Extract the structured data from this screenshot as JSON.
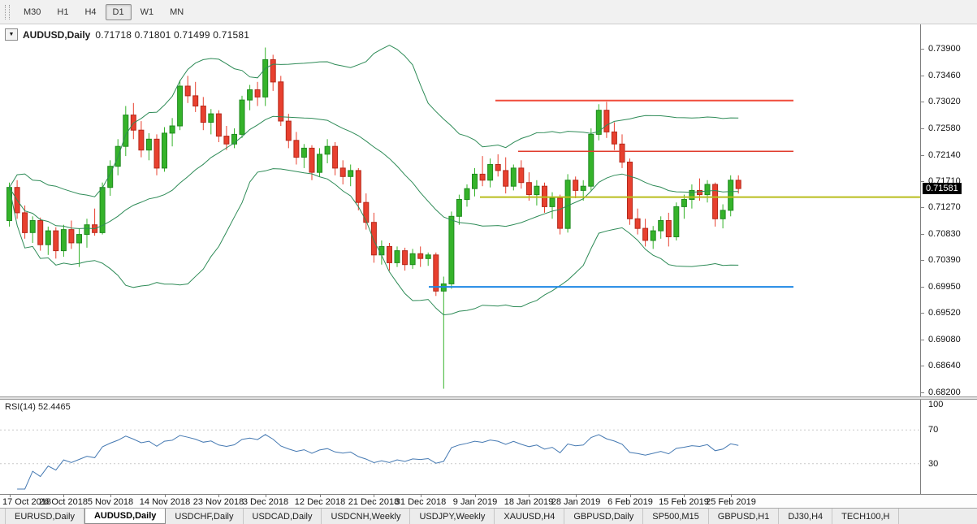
{
  "window": {
    "toolbar": {
      "timeframes": [
        {
          "label": "M30",
          "active": false
        },
        {
          "label": "H1",
          "active": false
        },
        {
          "label": "H4",
          "active": false
        },
        {
          "label": "D1",
          "active": true
        },
        {
          "label": "W1",
          "active": false
        },
        {
          "label": "MN",
          "active": false
        }
      ]
    }
  },
  "chart": {
    "header": {
      "dropdown_icon": "▼",
      "symbol": "AUDUSD,Daily",
      "ohlc": "0.71718 0.71801 0.71499 0.71581"
    },
    "price_axis": {
      "ticks": [
        "0.73900",
        "0.73460",
        "0.73020",
        "0.72580",
        "0.72140",
        "0.71710",
        "0.71270",
        "0.70830",
        "0.70390",
        "0.69950",
        "0.69520",
        "0.69080",
        "0.68640",
        "0.68200"
      ],
      "current_price": "0.71581"
    },
    "date_axis": {
      "ticks": [
        {
          "label": "17 Oct 2018",
          "index": 0
        },
        {
          "label": "26 Oct 2018",
          "index": 7
        },
        {
          "label": "5 Nov 2018",
          "index": 13
        },
        {
          "label": "14 Nov 2018",
          "index": 20
        },
        {
          "label": "23 Nov 2018",
          "index": 27
        },
        {
          "label": "3 Dec 2018",
          "index": 33
        },
        {
          "label": "12 Dec 2018",
          "index": 40
        },
        {
          "label": "21 Dec 2018",
          "index": 47
        },
        {
          "label": "31 Dec 2018",
          "index": 53
        },
        {
          "label": "9 Jan 2019",
          "index": 60
        },
        {
          "label": "18 Jan 2019",
          "index": 67
        },
        {
          "label": "28 Jan 2019",
          "index": 73
        },
        {
          "label": "6 Feb 2019",
          "index": 80
        },
        {
          "label": "15 Feb 2019",
          "index": 87
        },
        {
          "label": "25 Feb 2019",
          "index": 93
        }
      ]
    }
  },
  "chart_data": {
    "type": "candlestick",
    "symbol": "AUDUSD",
    "timeframe": "Daily",
    "price_max": 0.739,
    "price_min": 0.682,
    "colors": {
      "bull": "#35b32a",
      "bull_border": "#1f8a1f",
      "bear": "#e8402f",
      "bear_border": "#b5291b",
      "background": "#ffffff"
    },
    "indicators": {
      "bollinger": {
        "period": 20,
        "deviation": 2,
        "color": "#2e8b57"
      }
    },
    "candles": [
      [
        0.7105,
        0.7168,
        0.7095,
        0.716
      ],
      [
        0.716,
        0.7172,
        0.7108,
        0.7118
      ],
      [
        0.7118,
        0.713,
        0.7075,
        0.7085
      ],
      [
        0.7085,
        0.7112,
        0.7068,
        0.7105
      ],
      [
        0.7105,
        0.711,
        0.7055,
        0.7065
      ],
      [
        0.7065,
        0.7095,
        0.7048,
        0.7088
      ],
      [
        0.7088,
        0.7094,
        0.7042,
        0.7055
      ],
      [
        0.7055,
        0.7098,
        0.7045,
        0.709
      ],
      [
        0.709,
        0.7105,
        0.7058,
        0.7068
      ],
      [
        0.7068,
        0.7092,
        0.7028,
        0.7082
      ],
      [
        0.7082,
        0.7108,
        0.706,
        0.7098
      ],
      [
        0.7098,
        0.7125,
        0.708,
        0.7085
      ],
      [
        0.7085,
        0.7168,
        0.7082,
        0.716
      ],
      [
        0.716,
        0.7205,
        0.7146,
        0.7195
      ],
      [
        0.7195,
        0.724,
        0.718,
        0.7228
      ],
      [
        0.7228,
        0.7295,
        0.7212,
        0.728
      ],
      [
        0.728,
        0.73,
        0.724,
        0.7255
      ],
      [
        0.7255,
        0.727,
        0.721,
        0.7222
      ],
      [
        0.7222,
        0.725,
        0.7205,
        0.724
      ],
      [
        0.724,
        0.7248,
        0.718,
        0.7192
      ],
      [
        0.7192,
        0.726,
        0.7186,
        0.725
      ],
      [
        0.725,
        0.7275,
        0.7228,
        0.7262
      ],
      [
        0.7262,
        0.7338,
        0.7255,
        0.7328
      ],
      [
        0.7328,
        0.7345,
        0.73,
        0.7312
      ],
      [
        0.7312,
        0.7335,
        0.7285,
        0.7295
      ],
      [
        0.7295,
        0.731,
        0.7255,
        0.7268
      ],
      [
        0.7268,
        0.729,
        0.7248,
        0.7282
      ],
      [
        0.7282,
        0.7288,
        0.7235,
        0.7245
      ],
      [
        0.7245,
        0.7262,
        0.7222,
        0.7232
      ],
      [
        0.7232,
        0.7258,
        0.7225,
        0.7248
      ],
      [
        0.7248,
        0.7312,
        0.7242,
        0.7305
      ],
      [
        0.7305,
        0.733,
        0.7288,
        0.7322
      ],
      [
        0.7322,
        0.7335,
        0.7295,
        0.731
      ],
      [
        0.731,
        0.7392,
        0.7295,
        0.7372
      ],
      [
        0.7372,
        0.738,
        0.732,
        0.7335
      ],
      [
        0.7335,
        0.7345,
        0.7262,
        0.727
      ],
      [
        0.727,
        0.7282,
        0.7225,
        0.7238
      ],
      [
        0.7238,
        0.7252,
        0.7198,
        0.721
      ],
      [
        0.721,
        0.7232,
        0.7192,
        0.7225
      ],
      [
        0.7225,
        0.723,
        0.7172,
        0.7185
      ],
      [
        0.7185,
        0.7225,
        0.7178,
        0.7215
      ],
      [
        0.7215,
        0.724,
        0.72,
        0.7228
      ],
      [
        0.7228,
        0.7235,
        0.718,
        0.7192
      ],
      [
        0.7192,
        0.7205,
        0.7165,
        0.7178
      ],
      [
        0.7178,
        0.7198,
        0.7162,
        0.7188
      ],
      [
        0.7188,
        0.7192,
        0.7122,
        0.7135
      ],
      [
        0.7135,
        0.715,
        0.709,
        0.7102
      ],
      [
        0.7102,
        0.7118,
        0.7035,
        0.7048
      ],
      [
        0.7048,
        0.7072,
        0.7032,
        0.7062
      ],
      [
        0.7062,
        0.7068,
        0.7022,
        0.7035
      ],
      [
        0.7035,
        0.7062,
        0.7028,
        0.7055
      ],
      [
        0.7055,
        0.706,
        0.7022,
        0.7032
      ],
      [
        0.7032,
        0.7058,
        0.7025,
        0.705
      ],
      [
        0.705,
        0.7062,
        0.7028,
        0.7042
      ],
      [
        0.7042,
        0.7052,
        0.703,
        0.7048
      ],
      [
        0.7048,
        0.7052,
        0.698,
        0.6988
      ],
      [
        0.6988,
        0.7012,
        0.6826,
        0.7
      ],
      [
        0.7,
        0.712,
        0.6992,
        0.7112
      ],
      [
        0.7112,
        0.7148,
        0.7098,
        0.714
      ],
      [
        0.714,
        0.7165,
        0.7128,
        0.7158
      ],
      [
        0.7158,
        0.7192,
        0.7145,
        0.7182
      ],
      [
        0.7182,
        0.7212,
        0.7162,
        0.7172
      ],
      [
        0.7172,
        0.7208,
        0.716,
        0.7198
      ],
      [
        0.7198,
        0.7215,
        0.7178,
        0.7188
      ],
      [
        0.7188,
        0.721,
        0.715,
        0.7162
      ],
      [
        0.7162,
        0.7198,
        0.7155,
        0.7192
      ],
      [
        0.7192,
        0.7205,
        0.7158,
        0.7168
      ],
      [
        0.7168,
        0.7185,
        0.7138,
        0.7148
      ],
      [
        0.7148,
        0.7172,
        0.713,
        0.7162
      ],
      [
        0.7162,
        0.7168,
        0.7118,
        0.7128
      ],
      [
        0.7128,
        0.7152,
        0.7108,
        0.7142
      ],
      [
        0.7142,
        0.7148,
        0.7082,
        0.7092
      ],
      [
        0.7092,
        0.7182,
        0.7085,
        0.7172
      ],
      [
        0.7172,
        0.7178,
        0.7142,
        0.7155
      ],
      [
        0.7155,
        0.7172,
        0.7138,
        0.7162
      ],
      [
        0.7162,
        0.7258,
        0.7155,
        0.7248
      ],
      [
        0.7248,
        0.7298,
        0.7238,
        0.7288
      ],
      [
        0.7288,
        0.7302,
        0.7242,
        0.7252
      ],
      [
        0.7252,
        0.7268,
        0.7222,
        0.7232
      ],
      [
        0.7232,
        0.7248,
        0.7192,
        0.7202
      ],
      [
        0.7202,
        0.7208,
        0.7098,
        0.7108
      ],
      [
        0.7108,
        0.7125,
        0.7082,
        0.7092
      ],
      [
        0.7092,
        0.7108,
        0.7062,
        0.7072
      ],
      [
        0.7072,
        0.7096,
        0.7058,
        0.7088
      ],
      [
        0.7088,
        0.7112,
        0.7075,
        0.7105
      ],
      [
        0.7105,
        0.7118,
        0.7062,
        0.7078
      ],
      [
        0.7078,
        0.7135,
        0.7072,
        0.7128
      ],
      [
        0.7128,
        0.7148,
        0.7108,
        0.714
      ],
      [
        0.714,
        0.7165,
        0.7125,
        0.7155
      ],
      [
        0.7155,
        0.7175,
        0.7138,
        0.7148
      ],
      [
        0.7148,
        0.7172,
        0.7135,
        0.7165
      ],
      [
        0.7165,
        0.7168,
        0.7095,
        0.7108
      ],
      [
        0.7108,
        0.7132,
        0.7092,
        0.7122
      ],
      [
        0.7122,
        0.718,
        0.7112,
        0.7172
      ],
      [
        0.71718,
        0.71801,
        0.71499,
        0.71581
      ]
    ],
    "hlines": [
      {
        "name": "resistance-line-upper",
        "price": 0.7304,
        "color": "#f04b3a",
        "width": 2,
        "x1": 0.538,
        "x2": 0.862
      },
      {
        "name": "resistance-line-lower",
        "price": 0.722,
        "color": "#e03c2d",
        "width": 1.5,
        "x1": 0.563,
        "x2": 0.862
      },
      {
        "name": "pivot-line-yellow",
        "price": 0.7144,
        "color": "#b9bd1c",
        "width": 2,
        "x1": 0.522,
        "x2": 1.0
      },
      {
        "name": "support-line-blue",
        "price": 0.6995,
        "color": "#1e88e5",
        "width": 2,
        "x1": 0.466,
        "x2": 0.862
      }
    ]
  },
  "rsi_panel": {
    "label": "RSI(14) 52.4465",
    "period": 14,
    "color": "#4579b2",
    "levels": [
      {
        "label": "100",
        "value": 100,
        "dashed": false
      },
      {
        "label": "70",
        "value": 70,
        "dashed": true
      },
      {
        "label": "30",
        "value": 30,
        "dashed": true
      }
    ]
  },
  "tabs": [
    {
      "label": "EURUSD,Daily",
      "active": false
    },
    {
      "label": "AUDUSD,Daily",
      "active": true
    },
    {
      "label": "USDCHF,Daily",
      "active": false
    },
    {
      "label": "USDCAD,Daily",
      "active": false
    },
    {
      "label": "USDCNH,Weekly",
      "active": false
    },
    {
      "label": "USDJPY,Weekly",
      "active": false
    },
    {
      "label": "XAUUSD,H4",
      "active": false
    },
    {
      "label": "GBPUSD,Daily",
      "active": false
    },
    {
      "label": "SP500,M15",
      "active": false
    },
    {
      "label": "GBPUSD,H1",
      "active": false
    },
    {
      "label": "DJ30,H4",
      "active": false
    },
    {
      "label": "TECH100,H",
      "active": false
    }
  ]
}
